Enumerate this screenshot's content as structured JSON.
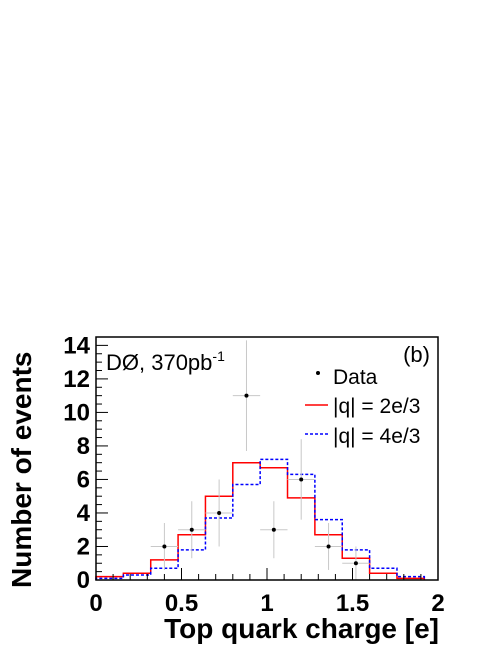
{
  "chart_data": {
    "type": "line",
    "panel_label": "(b)",
    "experiment_label": "DØ, 370pb",
    "experiment_label_sup": "-1",
    "xlabel": "Top quark charge [e]",
    "ylabel": "Number of events",
    "xlim": [
      0,
      2
    ],
    "ylim": [
      0,
      14.5
    ],
    "x_ticks": [
      0,
      0.5,
      1,
      1.5,
      2
    ],
    "x_tick_labels": [
      "0",
      "0.5",
      "1",
      "1.5",
      "2"
    ],
    "y_ticks": [
      0,
      2,
      4,
      6,
      8,
      10,
      12,
      14
    ],
    "y_tick_labels": [
      "0",
      "2",
      "4",
      "6",
      "8",
      "10",
      "12",
      "14"
    ],
    "bin_edges": [
      0,
      0.16,
      0.32,
      0.48,
      0.64,
      0.8,
      0.96,
      1.12,
      1.28,
      1.44,
      1.6,
      1.76,
      1.92
    ],
    "series": [
      {
        "name": "|q| = 2e/3",
        "style": "solid",
        "color": "#ff0000",
        "values": [
          0.2,
          0.4,
          1.2,
          2.7,
          5.0,
          7.0,
          6.7,
          4.9,
          2.7,
          1.3,
          0.4,
          0.1
        ]
      },
      {
        "name": "|q| = 4e/3",
        "style": "dashed",
        "color": "#0000ff",
        "values": [
          0.1,
          0.3,
          0.7,
          1.8,
          3.7,
          5.7,
          7.2,
          6.3,
          3.6,
          1.8,
          0.7,
          0.2
        ]
      }
    ],
    "data_points": {
      "name": "Data",
      "x": [
        0.4,
        0.56,
        0.72,
        0.88,
        1.04,
        1.2,
        1.36,
        1.52
      ],
      "y": [
        2,
        3,
        4,
        11,
        3,
        6,
        2,
        1
      ],
      "yerr_low": [
        1.4,
        1.7,
        2.0,
        3.3,
        1.7,
        2.4,
        1.4,
        1.0
      ],
      "yerr_high": [
        1.4,
        1.7,
        2.0,
        3.3,
        1.7,
        2.4,
        1.4,
        1.0
      ],
      "xerr": 0.08
    }
  }
}
